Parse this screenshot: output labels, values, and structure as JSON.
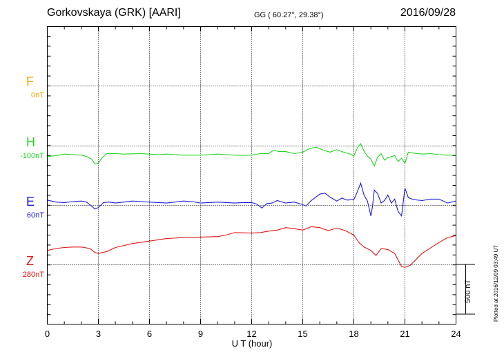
{
  "header": {
    "station": "Gorkovskaya (GRK)  [AARI]",
    "coords": "GG ( 60.27°,  29.38°)",
    "date": "2016/09/28"
  },
  "footnote": "Plotted at 2016/12/09 03:49 UT",
  "chart_data": {
    "type": "line",
    "xlabel": "U T (hour)",
    "xlim": [
      0,
      24
    ],
    "xticks": [
      "0",
      "3",
      "6",
      "9",
      "12",
      "15",
      "18",
      "21",
      "24"
    ],
    "grid": true,
    "scale_bar": "500 nT",
    "series": [
      {
        "name": "F",
        "offset_label": "0nT",
        "color": "#f4a300",
        "x": [],
        "y": []
      },
      {
        "name": "H",
        "offset_label": "-100nT",
        "color": "#1ed61e",
        "x": [
          0,
          0.5,
          1,
          1.5,
          2,
          2.3,
          2.6,
          2.8,
          3.0,
          3.2,
          3.5,
          4,
          4.5,
          5,
          5.5,
          6,
          6.5,
          7,
          7.5,
          8,
          8.5,
          9,
          9.5,
          10,
          10.5,
          11,
          11.5,
          12,
          12.5,
          13,
          13.3,
          13.6,
          14,
          14.5,
          15,
          15.4,
          15.8,
          16.2,
          16.6,
          17,
          17.4,
          17.8,
          18,
          18.2,
          18.4,
          18.6,
          18.8,
          19,
          19.2,
          19.4,
          19.6,
          19.8,
          20,
          20.2,
          20.4,
          20.6,
          20.8,
          21,
          21.2,
          21.5,
          22,
          22.5,
          23,
          23.5,
          24
        ],
        "y": [
          -110,
          -100,
          -85,
          -90,
          -95,
          -108,
          -135,
          -185,
          -175,
          -125,
          -80,
          -80,
          -85,
          -82,
          -80,
          -85,
          -90,
          -85,
          -90,
          -95,
          -95,
          -95,
          -90,
          -85,
          -90,
          -95,
          -98,
          -95,
          -80,
          -80,
          -45,
          -60,
          -60,
          -80,
          -65,
          -30,
          -15,
          -45,
          -65,
          -40,
          -65,
          -85,
          -105,
          -25,
          20,
          -55,
          -105,
          -135,
          -205,
          -115,
          -80,
          -145,
          -120,
          -110,
          -100,
          -160,
          -125,
          -180,
          -65,
          -75,
          -85,
          -80,
          -90,
          -95,
          -95
        ]
      },
      {
        "name": "E",
        "offset_label": "60nT",
        "color": "#1a1ad6",
        "x": [
          0,
          0.5,
          1,
          1.5,
          2,
          2.3,
          2.6,
          2.8,
          3.0,
          3.3,
          3.6,
          4,
          4.5,
          5,
          5.5,
          6,
          6.5,
          7,
          7.5,
          8,
          8.5,
          9,
          9.5,
          10,
          10.5,
          11,
          11.5,
          12,
          12.3,
          12.6,
          12.9,
          13.2,
          13.5,
          14,
          14.5,
          14.9,
          15.2,
          15.5,
          16,
          16.3,
          16.6,
          17,
          17.3,
          17.6,
          18,
          18.2,
          18.4,
          18.6,
          18.8,
          19,
          19.1,
          19.2,
          19.4,
          19.6,
          19.8,
          20,
          20.2,
          20.4,
          20.6,
          20.8,
          21,
          21.2,
          21.5,
          22,
          22.5,
          23,
          23.5,
          24
        ],
        "y": [
          50,
          30,
          25,
          35,
          40,
          30,
          -10,
          -40,
          -25,
          25,
          30,
          20,
          30,
          40,
          35,
          30,
          25,
          20,
          30,
          40,
          35,
          20,
          25,
          30,
          25,
          20,
          25,
          25,
          10,
          -30,
          15,
          20,
          45,
          20,
          30,
          10,
          -10,
          45,
          110,
          120,
          80,
          40,
          70,
          50,
          55,
          130,
          220,
          100,
          40,
          -110,
          -10,
          150,
          115,
          20,
          45,
          100,
          20,
          60,
          -65,
          -110,
          170,
          75,
          55,
          45,
          60,
          60,
          20,
          40
        ]
      },
      {
        "name": "Z",
        "offset_label": "280nT",
        "color": "#e01414",
        "x": [
          0,
          0.5,
          1,
          1.5,
          2,
          2.5,
          2.8,
          3.0,
          3.5,
          4,
          5,
          6,
          7,
          8,
          9,
          10,
          10.5,
          11,
          12,
          12.5,
          13,
          13.5,
          14,
          14.5,
          15,
          15.5,
          16,
          16.5,
          17,
          17.5,
          18,
          18.3,
          18.6,
          19,
          19.3,
          19.6,
          20,
          20.4,
          20.8,
          21.0,
          21.3,
          21.6,
          22,
          22.5,
          23,
          23.5,
          24
        ],
        "y": [
          140,
          160,
          170,
          175,
          175,
          160,
          120,
          110,
          130,
          170,
          210,
          235,
          260,
          270,
          275,
          280,
          295,
          320,
          315,
          320,
          335,
          345,
          370,
          360,
          345,
          380,
          370,
          340,
          365,
          340,
          295,
          220,
          175,
          140,
          90,
          160,
          150,
          110,
          -20,
          -30,
          -10,
          40,
          110,
          165,
          220,
          270,
          290
        ]
      }
    ]
  }
}
